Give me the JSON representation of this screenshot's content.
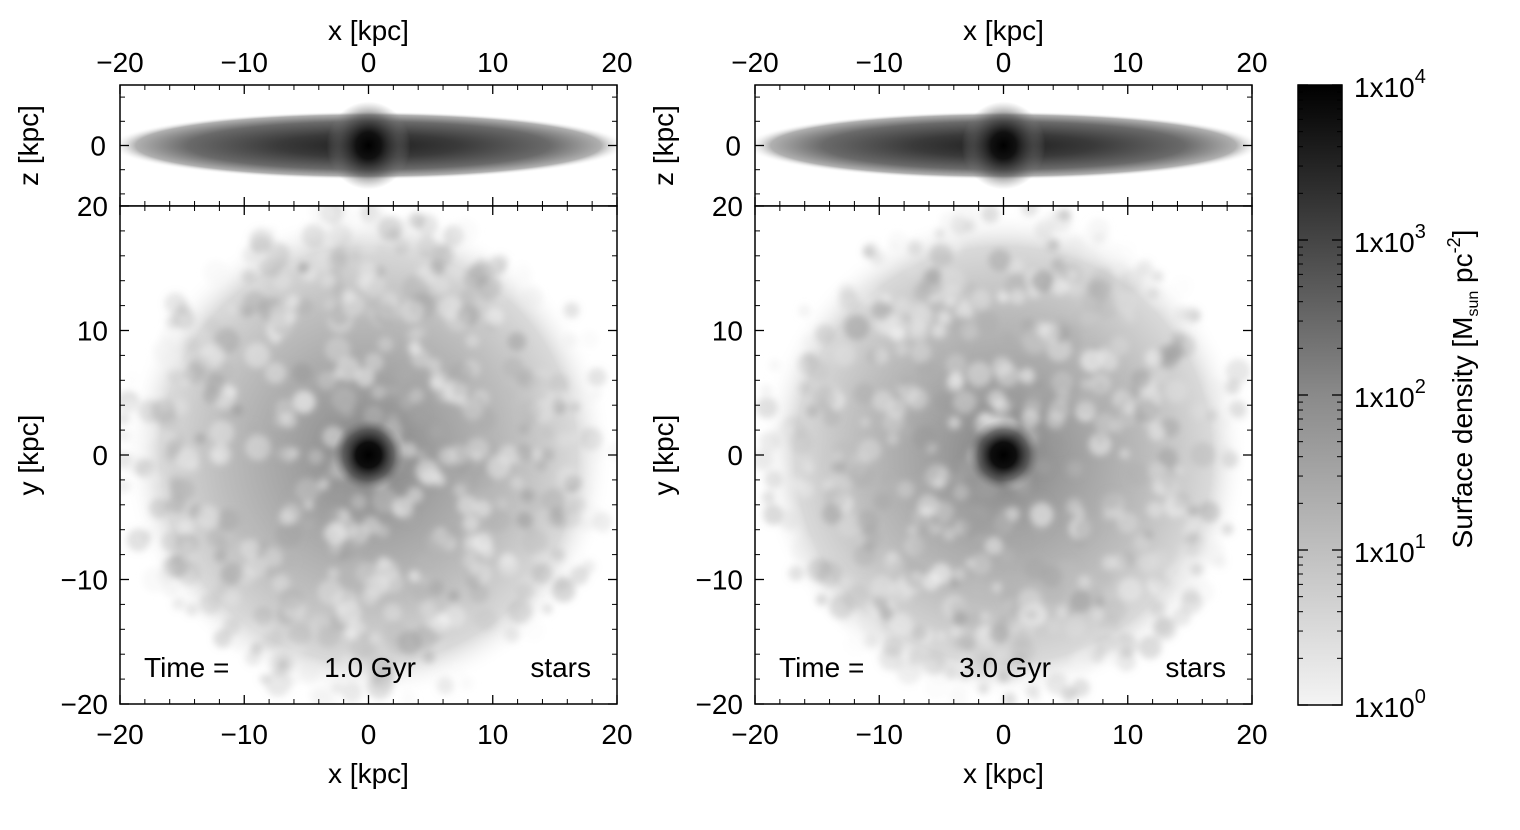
{
  "chart_data": {
    "type": "heatmap",
    "quantity": "stars",
    "colormap": "grayscale",
    "colorbar": {
      "label_main": "Surface density [M",
      "label_sub": "sun",
      "label_unit": " pc",
      "label_exp": "-2",
      "label_close": "]",
      "log_scale": true,
      "range": [
        1,
        10000
      ],
      "ticks": [
        {
          "value": 1,
          "mant": "1x10",
          "exp": "0"
        },
        {
          "value": 10,
          "mant": "1x10",
          "exp": "1"
        },
        {
          "value": 100,
          "mant": "1x10",
          "exp": "2"
        },
        {
          "value": 1000,
          "mant": "1x10",
          "exp": "3"
        },
        {
          "value": 10000,
          "mant": "1x10",
          "exp": "4"
        }
      ],
      "color_min": "#f4f4f4",
      "color_max": "#000000"
    },
    "panels": [
      {
        "time_label": "Time =",
        "time_value": "1.0 Gyr",
        "component": "stars",
        "seed": 11,
        "edge_on": {
          "xlabel": "x [kpc]",
          "ylabel": "z [kpc]",
          "xlim": [
            -20,
            20
          ],
          "ylim": [
            -5,
            5
          ],
          "xticks": [
            -20,
            -10,
            0,
            10,
            20
          ],
          "xtick_labels": [
            "−20",
            "−10",
            "0",
            "10",
            "20"
          ],
          "yticks": [
            0
          ],
          "ytick_labels": [
            "0"
          ]
        },
        "face_on": {
          "xlabel": "x [kpc]",
          "ylabel": "y [kpc]",
          "xlim": [
            -20,
            20
          ],
          "ylim": [
            -20,
            20
          ],
          "xticks": [
            -20,
            -10,
            0,
            10,
            20
          ],
          "xtick_labels": [
            "−20",
            "−10",
            "0",
            "10",
            "20"
          ],
          "yticks": [
            -20,
            -10,
            0,
            10,
            20
          ],
          "ytick_labels": [
            "−20",
            "−10",
            "0",
            "10",
            "20"
          ]
        }
      },
      {
        "time_label": "Time =",
        "time_value": "3.0 Gyr",
        "component": "stars",
        "seed": 37,
        "edge_on": {
          "xlabel": "x [kpc]",
          "ylabel": "z [kpc]",
          "xlim": [
            -20,
            20
          ],
          "ylim": [
            -5,
            5
          ],
          "xticks": [
            -20,
            -10,
            0,
            10,
            20
          ],
          "xtick_labels": [
            "−20",
            "−10",
            "0",
            "10",
            "20"
          ],
          "yticks": [
            0
          ],
          "ytick_labels": [
            "0"
          ]
        },
        "face_on": {
          "xlabel": "x [kpc]",
          "ylabel": "y [kpc]",
          "xlim": [
            -20,
            20
          ],
          "ylim": [
            -20,
            20
          ],
          "xticks": [
            -20,
            -10,
            0,
            10,
            20
          ],
          "xtick_labels": [
            "−20",
            "−10",
            "0",
            "10",
            "20"
          ],
          "yticks": [
            -20,
            -10,
            0,
            10,
            20
          ],
          "ytick_labels": [
            "−20",
            "−10",
            "0",
            "10",
            "20"
          ]
        }
      }
    ]
  }
}
